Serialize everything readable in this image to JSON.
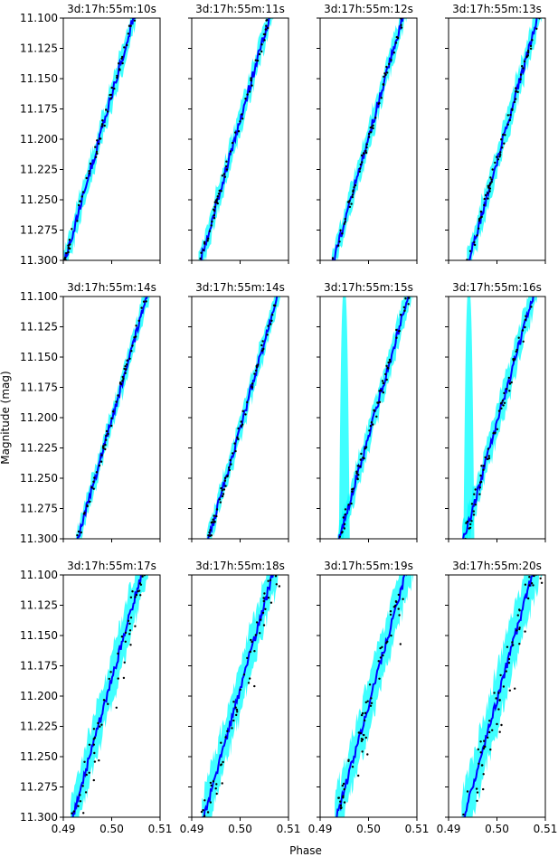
{
  "figure": {
    "xlabel": "Phase",
    "ylabel": "Magnitude (mag)"
  },
  "chart_data": {
    "type": "scatter",
    "layout": "grid 3x4, shared axes",
    "xlim": [
      0.49,
      0.51
    ],
    "ylim": [
      11.3,
      11.1
    ],
    "y_inverted": true,
    "xticks": [
      "0.49",
      "0.50",
      "0.51"
    ],
    "yticks": [
      "11.100",
      "11.125",
      "11.150",
      "11.175",
      "11.200",
      "11.225",
      "11.250",
      "11.275",
      "11.300"
    ],
    "colors": {
      "points": "#000000",
      "model_line": "#0000ff",
      "model_band": "#00ffff"
    },
    "panels": [
      {
        "title": "3d:17h:55m:10s",
        "seed": 11,
        "scatter": 0.006,
        "outlier": 0.0,
        "band": 0.011,
        "line_x0": 0.4903
      },
      {
        "title": "3d:17h:55m:11s",
        "seed": 12,
        "scatter": 0.006,
        "outlier": 0.0,
        "band": 0.011,
        "line_x0": 0.4918
      },
      {
        "title": "3d:17h:55m:12s",
        "seed": 13,
        "scatter": 0.006,
        "outlier": 0.0,
        "band": 0.011,
        "line_x0": 0.4928
      },
      {
        "title": "3d:17h:55m:13s",
        "seed": 14,
        "scatter": 0.006,
        "outlier": 0.0,
        "band": 0.012,
        "line_x0": 0.4942
      },
      {
        "title": "3d:17h:55m:14s",
        "seed": 15,
        "scatter": 0.006,
        "outlier": 0.0,
        "band": 0.01,
        "line_x0": 0.493
      },
      {
        "title": "3d:17h:55m:14s",
        "seed": 16,
        "scatter": 0.006,
        "outlier": 0.0,
        "band": 0.01,
        "line_x0": 0.4935
      },
      {
        "title": "3d:17h:55m:15s",
        "seed": 17,
        "scatter": 0.007,
        "outlier": 0.0,
        "band": 0.012,
        "line_x0": 0.494,
        "spike_x": 0.495
      },
      {
        "title": "3d:17h:55m:16s",
        "seed": 18,
        "scatter": 0.01,
        "outlier": 0.0,
        "band": 0.014,
        "line_x0": 0.4932,
        "spike_x": 0.4942
      },
      {
        "title": "3d:17h:55m:17s",
        "seed": 19,
        "scatter": 0.012,
        "outlier": 0.04,
        "band": 0.02,
        "line_x0": 0.4919
      },
      {
        "title": "3d:17h:55m:18s",
        "seed": 20,
        "scatter": 0.012,
        "outlier": 0.04,
        "band": 0.02,
        "line_x0": 0.4925
      },
      {
        "title": "3d:17h:55m:19s",
        "seed": 21,
        "scatter": 0.014,
        "outlier": 0.045,
        "band": 0.022,
        "line_x0": 0.4934
      },
      {
        "title": "3d:17h:55m:20s",
        "seed": 22,
        "scatter": 0.014,
        "outlier": 0.05,
        "band": 0.024,
        "line_x0": 0.4931
      }
    ]
  }
}
